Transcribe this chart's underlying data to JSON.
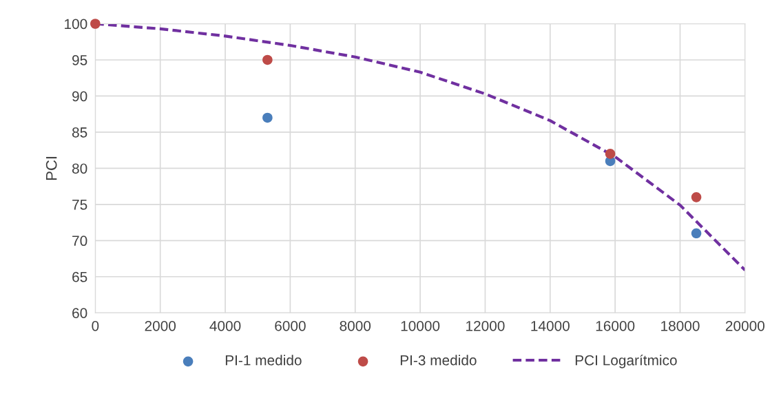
{
  "chart_data": {
    "type": "scatter",
    "ylabel": "PCI",
    "xlim": [
      0,
      20000
    ],
    "ylim": [
      60,
      100
    ],
    "xticks": [
      0,
      2000,
      4000,
      6000,
      8000,
      10000,
      12000,
      14000,
      16000,
      18000,
      20000
    ],
    "yticks": [
      60,
      65,
      70,
      75,
      80,
      85,
      90,
      95,
      100
    ],
    "grid": true,
    "legend": "bottom",
    "series": [
      {
        "name": "PI-1 medido",
        "marker": "circle",
        "color": "#4a7ebb",
        "x": [
          5300,
          15850,
          18500
        ],
        "values": [
          87,
          81,
          71
        ]
      },
      {
        "name": "PI-3 medido",
        "marker": "circle",
        "color": "#be4b48",
        "x": [
          0,
          5300,
          15850,
          18500
        ],
        "values": [
          100,
          95,
          82,
          76
        ]
      },
      {
        "name": "PCI Logarítmico",
        "type": "line",
        "marker": "none",
        "line_style": "dashed",
        "color": "#7030a0",
        "x": [
          0,
          2000,
          4000,
          6000,
          8000,
          10000,
          12000,
          14000,
          16000,
          18000,
          20000
        ],
        "values": [
          100,
          99.3,
          98.3,
          97.0,
          95.4,
          93.3,
          90.3,
          86.6,
          81.6,
          74.9,
          65.9
        ]
      }
    ]
  }
}
